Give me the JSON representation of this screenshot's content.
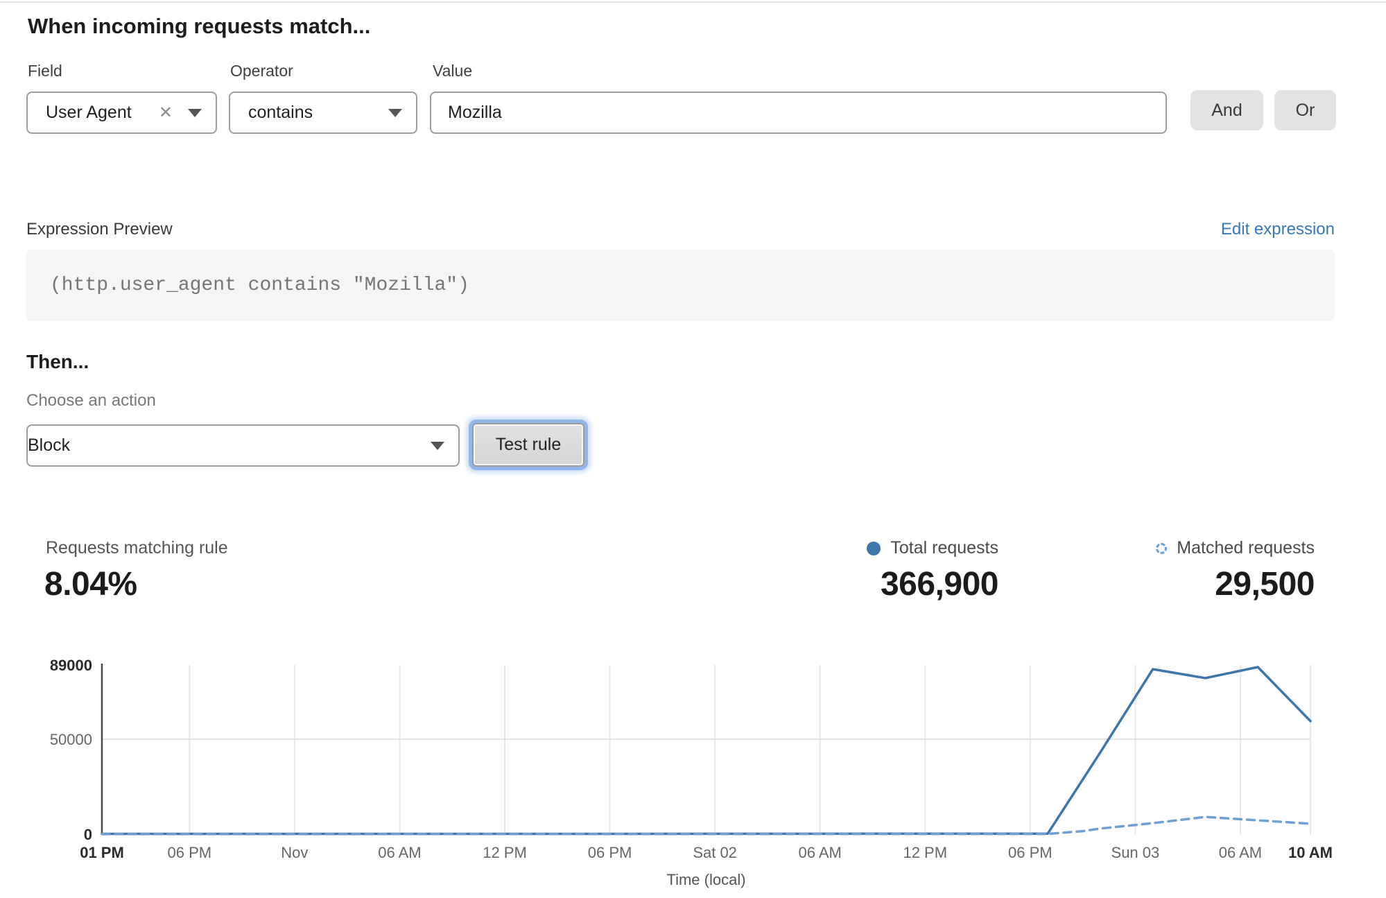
{
  "header": {
    "title": "When incoming requests match..."
  },
  "rule_builder": {
    "field_label": "Field",
    "operator_label": "Operator",
    "value_label": "Value",
    "field_value": "User Agent",
    "operator_value": "contains",
    "value_value": "Mozilla",
    "and_label": "And",
    "or_label": "Or"
  },
  "expression": {
    "preview_label": "Expression Preview",
    "edit_link": "Edit expression",
    "code": "(http.user_agent contains \"Mozilla\")"
  },
  "action": {
    "then_label": "Then...",
    "choose_label": "Choose an action",
    "selected_action": "Block",
    "test_button": "Test rule"
  },
  "stats": {
    "matching_label": "Requests matching rule",
    "matching_value": "8.04%",
    "total_label": "Total requests",
    "total_value": "366,900",
    "matched_label": "Matched requests",
    "matched_value": "29,500"
  },
  "colors": {
    "link": "#3778b5",
    "focus_ring": "#8fb7e9",
    "axis": "#4a4a4a",
    "grid_vertical": "#e8e8e8",
    "grid_horizontal": "#e2e2e2",
    "tick_bold": "#2b2b2b",
    "tick_regular": "#666666"
  },
  "chart_data": {
    "type": "line",
    "title": "",
    "xlabel": "Time (local)",
    "ylabel": "",
    "ylim": [
      0,
      89000
    ],
    "grid": {
      "vertical": true,
      "horizontal_at": [
        50000
      ]
    },
    "legend_position": "top-right",
    "y_ticks": [
      {
        "value": 0,
        "label": "0",
        "bold": true
      },
      {
        "value": 50000,
        "label": "50000",
        "bold": false
      },
      {
        "value": 89000,
        "label": "89000",
        "bold": true
      }
    ],
    "x_ticks": [
      {
        "hour": 0,
        "label": "01 PM",
        "bold": true
      },
      {
        "hour": 5,
        "label": "06 PM",
        "bold": false
      },
      {
        "hour": 11,
        "label": "Nov",
        "bold": false
      },
      {
        "hour": 17,
        "label": "06 AM",
        "bold": false
      },
      {
        "hour": 23,
        "label": "12 PM",
        "bold": false
      },
      {
        "hour": 29,
        "label": "06 PM",
        "bold": false
      },
      {
        "hour": 35,
        "label": "Sat 02",
        "bold": false
      },
      {
        "hour": 41,
        "label": "06 AM",
        "bold": false
      },
      {
        "hour": 47,
        "label": "12 PM",
        "bold": false
      },
      {
        "hour": 53,
        "label": "06 PM",
        "bold": false
      },
      {
        "hour": 59,
        "label": "Sun 03",
        "bold": false
      },
      {
        "hour": 65,
        "label": "06 AM",
        "bold": false
      },
      {
        "hour": 69,
        "label": "10 AM",
        "bold": true
      }
    ],
    "series": [
      {
        "name": "Total requests",
        "style": "solid",
        "color": "#3c76ab",
        "points": [
          [
            0,
            200
          ],
          [
            27,
            200
          ],
          [
            54,
            300
          ],
          [
            57,
            43000
          ],
          [
            60,
            86800
          ],
          [
            63,
            82100
          ],
          [
            66,
            87900
          ],
          [
            69,
            59500
          ]
        ]
      },
      {
        "name": "Matched requests",
        "style": "dashed",
        "color": "#6fa0d4",
        "points": [
          [
            0,
            50
          ],
          [
            54,
            150
          ],
          [
            56,
            1600
          ],
          [
            57,
            3000
          ],
          [
            60,
            5800
          ],
          [
            63,
            9100
          ],
          [
            66,
            7300
          ],
          [
            69,
            5500
          ]
        ]
      }
    ]
  }
}
